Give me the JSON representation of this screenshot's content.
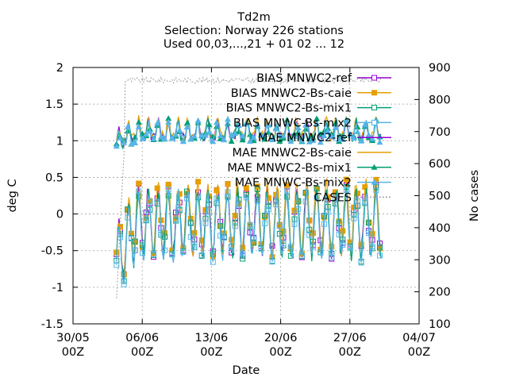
{
  "chart_data": {
    "type": "line",
    "title_lines": [
      "Td2m",
      "Selection: Norway    226 stations",
      "Used 00,03,...,21 + 01 02 ... 12"
    ],
    "xlabel": "Date",
    "ylabel": "deg C",
    "y2label": "No cases",
    "xlim_days": [
      0,
      35
    ],
    "ylim": [
      -1.5,
      2
    ],
    "y2lim": [
      100,
      900
    ],
    "x_ticks": [
      {
        "day": 0,
        "line1": "30/05",
        "line2": "00Z"
      },
      {
        "day": 7,
        "line1": "06/06",
        "line2": "00Z"
      },
      {
        "day": 14,
        "line1": "13/06",
        "line2": "00Z"
      },
      {
        "day": 21,
        "line1": "20/06",
        "line2": "00Z"
      },
      {
        "day": 28,
        "line1": "27/06",
        "line2": "00Z"
      },
      {
        "day": 35,
        "line1": "04/07",
        "line2": "00Z"
      }
    ],
    "y_ticks": [
      "-1.5",
      "-1",
      "-0.5",
      "0",
      "0.5",
      "1",
      "1.5",
      "2"
    ],
    "y2_ticks": [
      "100",
      "200",
      "300",
      "400",
      "500",
      "600",
      "700",
      "800",
      "900"
    ],
    "grid": true,
    "legend_position": "top-right",
    "series": [
      {
        "name": "BIAS MNWC2-ref",
        "color": "#9400d3",
        "marker": "square-open",
        "kind": "bias",
        "amp": 0.95,
        "offset": 0.0,
        "seed": 1
      },
      {
        "name": "BIAS MNWC2-Bs-caie",
        "color": "#e69f00",
        "marker": "square-filled",
        "kind": "bias",
        "amp": 1.02,
        "offset": 0.05,
        "seed": 2
      },
      {
        "name": "BIAS MNWC2-Bs-mix1",
        "color": "#009e73",
        "marker": "square-open",
        "kind": "bias",
        "amp": 0.98,
        "offset": -0.03,
        "seed": 3
      },
      {
        "name": "BIAS MNWC-Bs-mix2",
        "color": "#56b4e9",
        "marker": "square-open",
        "kind": "bias",
        "amp": 0.96,
        "offset": -0.06,
        "seed": 4
      },
      {
        "name": "MAE MNWC2-ref",
        "color": "#9400d3",
        "marker": "none",
        "kind": "mae",
        "amp": 1.0,
        "offset": 0.0,
        "seed": 5
      },
      {
        "name": "MAE MNWC2-Bs-caie",
        "color": "#e69f00",
        "marker": "none",
        "kind": "mae",
        "amp": 1.05,
        "offset": 0.02,
        "seed": 6
      },
      {
        "name": "MAE MNWC2-Bs-mix1",
        "color": "#009e73",
        "marker": "triangle-filled",
        "kind": "mae",
        "amp": 0.98,
        "offset": -0.01,
        "seed": 7
      },
      {
        "name": "MAE MNWC-Bs-mix2",
        "color": "#56b4e9",
        "marker": "triangle-filled",
        "kind": "mae",
        "amp": 0.97,
        "offset": -0.02,
        "seed": 8
      },
      {
        "name": "CASES",
        "color": "#a0a0a0",
        "marker": "none",
        "kind": "cases",
        "amp": 1,
        "offset": 0,
        "seed": 9
      }
    ],
    "data_range_days": [
      4.4,
      31.2
    ],
    "cases_level": 860,
    "mae_base": 1.05,
    "bias_base": 0.05
  }
}
